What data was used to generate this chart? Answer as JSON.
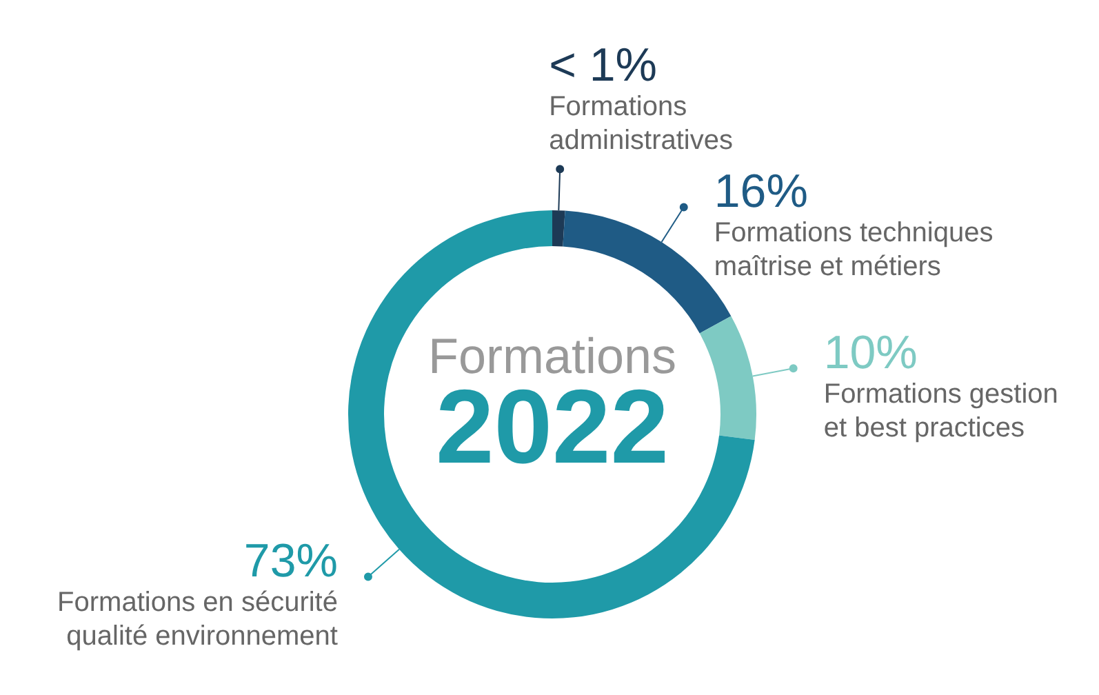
{
  "chart_data": {
    "type": "donut",
    "title": "Formations",
    "subtitle": "2022",
    "categories": [
      "Formations\nadministratives",
      "Formations techniques\nmaîtrise et métiers",
      "Formations gestion\net best practices",
      "Formations en sécurité\nqualité environnement"
    ],
    "values": [
      1,
      16,
      10,
      73
    ],
    "value_labels": [
      "< 1%",
      "16%",
      "10%",
      "73%"
    ],
    "colors": [
      "#1d3a56",
      "#1f5b85",
      "#7ecac3",
      "#1f9aa8"
    ]
  }
}
